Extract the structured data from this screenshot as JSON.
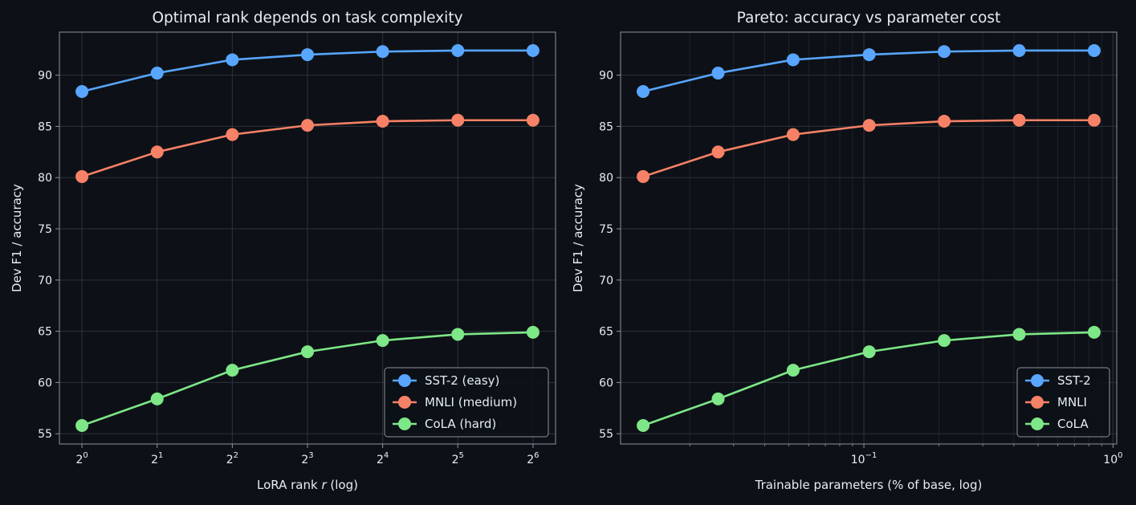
{
  "theme": {
    "background": "#0d1117",
    "plot_background": "#0d1117",
    "text": "#e6edf3",
    "grid": "#2d333b",
    "spine": "#8b949e"
  },
  "chart_data": [
    {
      "type": "line",
      "title": "Optimal rank depends on task complexity",
      "xlabel_prefix": "LoRA rank ",
      "xlabel_var": "r",
      "xlabel_suffix": " (log)",
      "ylabel": "Dev F1 / accuracy",
      "xscale": "log2",
      "x": [
        1,
        2,
        4,
        8,
        16,
        32,
        64
      ],
      "xtick_base": "2",
      "xtick_exponents": [
        "0",
        "1",
        "2",
        "3",
        "4",
        "5",
        "6"
      ],
      "ylim": [
        54,
        94.2
      ],
      "yticks": [
        55,
        60,
        65,
        70,
        75,
        80,
        85,
        90
      ],
      "grid": true,
      "legend_position": "lower right",
      "series": [
        {
          "name": "SST-2 (easy)",
          "color": "#58a6ff",
          "values": [
            88.4,
            90.2,
            91.5,
            92.0,
            92.3,
            92.4,
            92.4
          ]
        },
        {
          "name": "MNLI (medium)",
          "color": "#f78166",
          "values": [
            80.1,
            82.5,
            84.2,
            85.1,
            85.5,
            85.6,
            85.6
          ]
        },
        {
          "name": "CoLA (hard)",
          "color": "#7ee787",
          "values": [
            55.8,
            58.4,
            61.2,
            63.0,
            64.1,
            64.7,
            64.9
          ]
        }
      ]
    },
    {
      "type": "line",
      "title": "Pareto: accuracy vs parameter cost",
      "xlabel": "Trainable parameters (% of base, log)",
      "ylabel": "Dev F1 / accuracy",
      "xscale": "log10",
      "x": [
        0.013,
        0.026,
        0.052,
        0.105,
        0.21,
        0.42,
        0.84
      ],
      "xtick_labels": [
        {
          "value": 0.1,
          "base": "10",
          "exp": "−1"
        },
        {
          "value": 1,
          "base": "10",
          "exp": "0"
        }
      ],
      "ylim": [
        54,
        94.2
      ],
      "yticks": [
        55,
        60,
        65,
        70,
        75,
        80,
        85,
        90
      ],
      "grid": true,
      "legend_position": "lower right",
      "series": [
        {
          "name": "SST-2",
          "color": "#58a6ff",
          "values": [
            88.4,
            90.2,
            91.5,
            92.0,
            92.3,
            92.4,
            92.4
          ]
        },
        {
          "name": "MNLI",
          "color": "#f78166",
          "values": [
            80.1,
            82.5,
            84.2,
            85.1,
            85.5,
            85.6,
            85.6
          ]
        },
        {
          "name": "CoLA",
          "color": "#7ee787",
          "values": [
            55.8,
            58.4,
            61.2,
            63.0,
            64.1,
            64.7,
            64.9
          ]
        }
      ]
    }
  ]
}
